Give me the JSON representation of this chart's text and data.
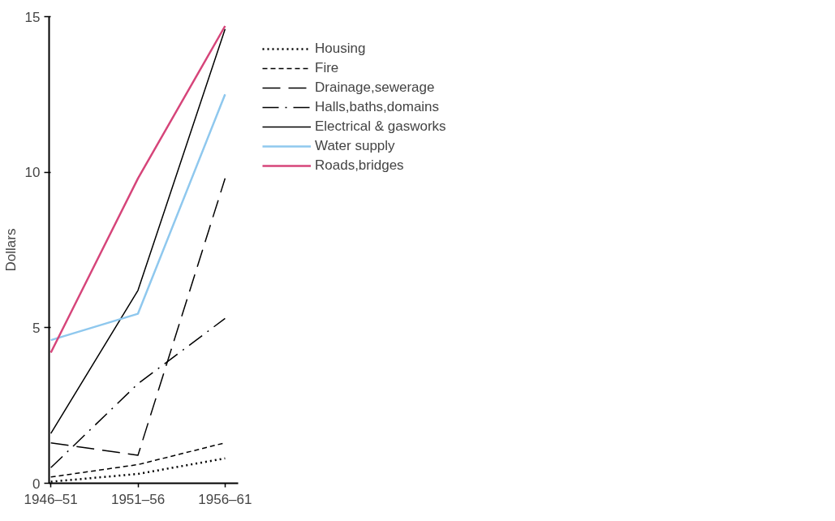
{
  "chart_data": {
    "type": "line",
    "ylabel": "Dollars",
    "categories": [
      "1946–51",
      "1951–56",
      "1956–61"
    ],
    "ylim": [
      0,
      15
    ],
    "yticks": [
      0,
      5,
      10,
      15
    ],
    "grid": false,
    "legend": "right",
    "series": [
      {
        "name": "Housing",
        "color": "#000000",
        "line_style": "dotted",
        "values": [
          0.05,
          0.3,
          0.8
        ]
      },
      {
        "name": "Fire",
        "color": "#000000",
        "line_style": "dashed",
        "values": [
          0.2,
          0.6,
          1.3
        ]
      },
      {
        "name": "Drainage,sewerage",
        "color": "#000000",
        "line_style": "longdash",
        "values": [
          1.3,
          0.9,
          9.8
        ]
      },
      {
        "name": "Halls,baths,domains",
        "color": "#000000",
        "line_style": "dashdot",
        "values": [
          0.5,
          3.2,
          5.3
        ]
      },
      {
        "name": "Electrical & gasworks",
        "color": "#000000",
        "line_style": "solid",
        "values": [
          1.6,
          6.2,
          14.6
        ]
      },
      {
        "name": "Water supply",
        "color": "#8fc8ee",
        "line_style": "solid",
        "values": [
          4.6,
          5.45,
          12.5
        ]
      },
      {
        "name": "Roads,bridges",
        "color": "#d6457a",
        "line_style": "solid",
        "values": [
          4.2,
          9.8,
          14.7
        ]
      }
    ]
  }
}
